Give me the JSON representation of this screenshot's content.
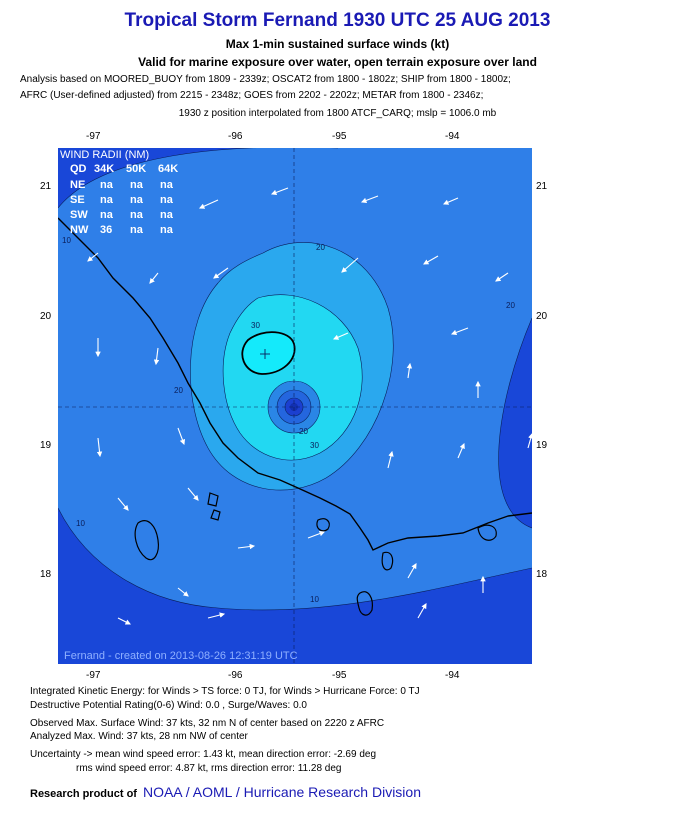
{
  "header": {
    "title": "Tropical Storm Fernand 1930 UTC 25 AUG 2013",
    "subtitle1": "Max 1-min sustained surface winds (kt)",
    "subtitle2": "Valid for marine exposure over water, open terrain exposure over land",
    "analysis_line1": "Analysis based on MOORED_BUOY from 1809 - 2339z; OSCAT2 from 1800 - 1802z; SHIP from 1800 - 1800z;",
    "analysis_line2": "AFRC (User-defined adjusted) from 2215 - 2348z; GOES from 2202 - 2202z; METAR from 1800 - 2346z;",
    "analysis_line3": "1930 z position interpolated from 1800 ATCF_CARQ; mslp = 1006.0 mb"
  },
  "map": {
    "lon_ticks": [
      "-97",
      "-96",
      "-95",
      "-94"
    ],
    "lat_ticks": [
      "21",
      "20",
      "19",
      "18"
    ],
    "wind_radii": {
      "title": "WIND RADII (NM)",
      "header": [
        "QD",
        "34K",
        "50K",
        "64K"
      ],
      "rows": [
        [
          "NE",
          "na",
          "na",
          "na"
        ],
        [
          "SE",
          "na",
          "na",
          "na"
        ],
        [
          "SW",
          "na",
          "na",
          "na"
        ],
        [
          "NW",
          "36",
          "na",
          "na"
        ]
      ]
    },
    "contour_labels": [
      "20",
      "20",
      "20",
      "10",
      "30",
      "30",
      "20",
      "10",
      "10"
    ],
    "footer": "Fernand - created on 2013-08-26 12:31:19 UTC",
    "colors": {
      "level_lt10": "#1947d8",
      "level_10_20": "#2f7fe8",
      "level_20_30": "#2aa8ee",
      "level_30_35": "#22d8f2",
      "level_gt35": "#14eafb",
      "center_core": "#1b3fd0",
      "land_line": "#000000"
    }
  },
  "footer": {
    "ike": "Integrated Kinetic Energy: for Winds > TS force: 0 TJ, for Winds > Hurricane Force: 0 TJ",
    "dpr": "Destructive Potential Rating(0-6)   Wind: 0.0 , Surge/Waves: 0.0",
    "obs": "Observed Max. Surface Wind: 37 kts, 32 nm N of center based on 2220 z AFRC",
    "analyzed": "Analyzed Max. Wind: 37 kts, 28 nm  NW of center",
    "uncert1": "Uncertainty -> mean wind speed error: 1.43 kt, mean direction error:  -2.69 deg",
    "uncert2": "rms wind speed error: 4.87 kt, rms direction error: 11.28 deg",
    "credit_prefix": "Research product of",
    "credit_org": "NOAA  /  AOML  /  Hurricane Research Division"
  }
}
